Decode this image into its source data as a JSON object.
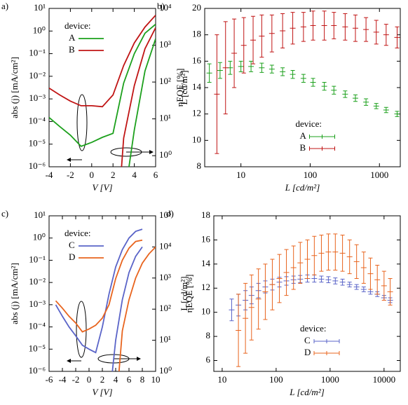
{
  "chart_data": [
    {
      "type": "line",
      "label": "a)",
      "xlabel": "V [V]",
      "ylabel": "abs (j) [mA/cm²]",
      "y2label": "L [cd/m²]",
      "xlim": [
        -4,
        6
      ],
      "xticks": [
        -4,
        -2,
        0,
        2,
        4,
        6
      ],
      "ylim": [
        1e-06,
        10
      ],
      "ylog": true,
      "yticks": [
        {
          "value": 1e-06,
          "label": "10⁻⁶"
        },
        {
          "value": 1e-05,
          "label": "10⁻⁵"
        },
        {
          "value": 0.0001,
          "label": "10⁻⁴"
        },
        {
          "value": 0.001,
          "label": "10⁻³"
        },
        {
          "value": 0.01,
          "label": "10⁻²"
        },
        {
          "value": 0.1,
          "label": "10⁻¹"
        },
        {
          "value": 1,
          "label": "10⁰"
        },
        {
          "value": 10,
          "label": "10¹"
        }
      ],
      "y2lim": [
        0.5,
        10000
      ],
      "y2log": true,
      "y2ticks": [
        {
          "value": 1,
          "label": "10⁰"
        },
        {
          "value": 10,
          "label": "10¹"
        },
        {
          "value": 100,
          "label": "10²"
        },
        {
          "value": 1000,
          "label": "10³"
        },
        {
          "value": 10000,
          "label": "10⁴"
        }
      ],
      "legend_title": "device:",
      "legend": "upper left",
      "series": [
        {
          "name": "A",
          "color": "#1ca01c",
          "x": [
            -4,
            -3,
            -2,
            -1,
            0,
            1,
            2,
            3,
            4,
            5,
            6
          ],
          "values": [
            0.00015,
            6e-05,
            2.5e-05,
            8e-06,
            1.2e-05,
            2e-05,
            3e-05,
            0.005,
            0.1,
            0.8,
            2
          ]
        },
        {
          "color": "#c01414",
          "name": "B",
          "x": [
            -4,
            -3,
            -2,
            -1,
            0,
            1,
            2,
            3,
            4,
            5,
            6
          ],
          "values": [
            0.003,
            0.0015,
            0.0008,
            0.0005,
            0.0005,
            0.00045,
            0.0015,
            0.03,
            0.3,
            1.5,
            5
          ]
        },
        {
          "color": "#1ca01c",
          "axis": "y2",
          "x": [
            3.5,
            4,
            5,
            6
          ],
          "values": [
            0.5,
            5,
            200,
            1500
          ]
        },
        {
          "color": "#c01414",
          "axis": "y2",
          "x": [
            2.8,
            3,
            4,
            5,
            6
          ],
          "values": [
            0.5,
            3,
            80,
            800,
            3000
          ]
        }
      ]
    },
    {
      "type": "errorbar",
      "label": "b)",
      "xlabel": "L [cd/m²]",
      "ylabel": "ηEQE [%]",
      "xlim": [
        3,
        2000
      ],
      "xlog": true,
      "xticks": [
        10,
        100,
        1000
      ],
      "ylim": [
        8,
        20
      ],
      "yticks": [
        8,
        10,
        12,
        14,
        16,
        18,
        20
      ],
      "legend_title": "device:",
      "legend": "lower center",
      "series": [
        {
          "name": "A",
          "color": "#1ca01c",
          "x": [
            3.5,
            5,
            7,
            10,
            14,
            20,
            28,
            40,
            56,
            80,
            110,
            160,
            220,
            320,
            450,
            640,
            900,
            1250,
            1800
          ],
          "values": [
            15.1,
            15.3,
            15.5,
            15.6,
            15.6,
            15.5,
            15.4,
            15.2,
            15.0,
            14.7,
            14.4,
            14.1,
            13.8,
            13.5,
            13.2,
            12.9,
            12.6,
            12.3,
            12.0
          ],
          "errors": [
            0.7,
            0.6,
            0.5,
            0.4,
            0.4,
            0.35,
            0.3,
            0.3,
            0.3,
            0.3,
            0.3,
            0.3,
            0.3,
            0.25,
            0.25,
            0.25,
            0.2,
            0.2,
            0.2
          ]
        },
        {
          "name": "B",
          "color": "#c01414",
          "x": [
            4.5,
            6,
            8,
            11,
            15,
            20,
            28,
            40,
            56,
            80,
            110,
            160,
            220,
            320,
            450,
            640,
            900,
            1250,
            1800
          ],
          "values": [
            13.5,
            15.5,
            16.6,
            17.2,
            17.6,
            17.9,
            18.1,
            18.3,
            18.5,
            18.6,
            18.7,
            18.7,
            18.7,
            18.6,
            18.5,
            18.4,
            18.2,
            18.0,
            17.8
          ],
          "errors": [
            4.5,
            3.5,
            2.6,
            2.1,
            1.8,
            1.6,
            1.4,
            1.3,
            1.2,
            1.1,
            1.1,
            1.1,
            1.0,
            1.0,
            1.0,
            0.9,
            0.9,
            0.8,
            0.8
          ]
        }
      ]
    },
    {
      "type": "line",
      "label": "c)",
      "xlabel": "V [V]",
      "ylabel": "abs (j) [mA/cm²]",
      "y2label": "L [cd/m²]",
      "xlim": [
        -6,
        10
      ],
      "xticks": [
        -6,
        -4,
        -2,
        0,
        2,
        4,
        6,
        8,
        10
      ],
      "ylim": [
        1e-06,
        10
      ],
      "ylog": true,
      "yticks": [
        {
          "value": 1e-06,
          "label": "10⁻⁶"
        },
        {
          "value": 1e-05,
          "label": "10⁻⁵"
        },
        {
          "value": 0.0001,
          "label": "10⁻⁴"
        },
        {
          "value": 0.001,
          "label": "10⁻³"
        },
        {
          "value": 0.01,
          "label": "10⁻²"
        },
        {
          "value": 0.1,
          "label": "10⁻¹"
        },
        {
          "value": 1,
          "label": "10⁰"
        },
        {
          "value": 10,
          "label": "10¹"
        }
      ],
      "y2lim": [
        1,
        100000
      ],
      "y2log": true,
      "y2ticks": [
        {
          "value": 1,
          "label": "10⁰"
        },
        {
          "value": 10,
          "label": "10¹"
        },
        {
          "value": 100,
          "label": "10²"
        },
        {
          "value": 1000,
          "label": "10³"
        },
        {
          "value": 10000,
          "label": "10⁴"
        },
        {
          "value": 100000,
          "label": "10⁵"
        }
      ],
      "legend_title": "device:",
      "legend": "upper left",
      "series": [
        {
          "name": "C",
          "color": "#5a64c8",
          "x": [
            -5,
            -4,
            -3,
            -2,
            -1,
            0,
            1,
            2,
            3,
            4,
            5,
            6,
            7,
            8
          ],
          "values": [
            0.001,
            0.0003,
            0.0001,
            4e-05,
            1.5e-05,
            1e-05,
            7e-06,
            0.0001,
            0.003,
            0.05,
            0.3,
            1,
            2,
            2.5
          ]
        },
        {
          "name": "D",
          "color": "#e8641e",
          "x": [
            -5,
            -4,
            -3,
            -2,
            -1,
            0,
            1,
            2,
            3,
            4,
            5,
            6,
            7,
            8
          ],
          "values": [
            0.0015,
            0.0007,
            0.0003,
            0.00015,
            6e-05,
            8e-05,
            0.00012,
            0.00025,
            0.001,
            0.015,
            0.1,
            0.35,
            0.7,
            0.8
          ]
        },
        {
          "color": "#5a64c8",
          "axis": "y2",
          "x": [
            3.5,
            4,
            5,
            6,
            7,
            8
          ],
          "values": [
            1,
            10,
            200,
            1500,
            5000,
            10000
          ]
        },
        {
          "color": "#e8641e",
          "axis": "y2",
          "x": [
            4.5,
            5,
            6,
            7,
            8,
            9,
            10
          ],
          "values": [
            1,
            20,
            200,
            1000,
            3000,
            6000,
            10000
          ]
        }
      ]
    },
    {
      "type": "errorbar",
      "label": "d)",
      "xlabel": "L [cd/m²]",
      "ylabel": "ηEQE [%]",
      "xlim": [
        7,
        20000
      ],
      "xlog": true,
      "xticks": [
        10,
        100,
        1000,
        10000
      ],
      "ylim": [
        5.1,
        18
      ],
      "yticks": [
        6,
        8,
        10,
        12,
        14,
        16,
        18
      ],
      "legend_title": "device:",
      "legend": "lower center",
      "series": [
        {
          "name": "C",
          "color": "#5a64c8",
          "x": [
            15,
            20,
            27,
            35,
            47,
            63,
            85,
            115,
            155,
            210,
            280,
            380,
            510,
            690,
            930,
            1250,
            1700,
            2300,
            3100,
            4200,
            5600,
            7500,
            10000,
            13000
          ],
          "values": [
            10.2,
            10.6,
            11.0,
            11.4,
            11.8,
            12.1,
            12.3,
            12.5,
            12.6,
            12.7,
            12.75,
            12.8,
            12.8,
            12.75,
            12.7,
            12.6,
            12.5,
            12.3,
            12.1,
            11.9,
            11.7,
            11.5,
            11.2,
            11.0
          ],
          "errors": [
            0.9,
            0.9,
            0.8,
            0.7,
            0.6,
            0.5,
            0.45,
            0.4,
            0.35,
            0.3,
            0.3,
            0.3,
            0.3,
            0.25,
            0.25,
            0.25,
            0.25,
            0.2,
            0.2,
            0.2,
            0.2,
            0.2,
            0.2,
            0.2
          ]
        },
        {
          "name": "D",
          "color": "#e8641e",
          "x": [
            20,
            27,
            35,
            47,
            63,
            85,
            115,
            155,
            210,
            280,
            380,
            510,
            690,
            930,
            1250,
            1700,
            2300,
            3100,
            4200,
            5600,
            7500,
            10000,
            13000
          ],
          "values": [
            8.5,
            9.5,
            10.4,
            11.1,
            11.7,
            12.3,
            12.8,
            13.3,
            13.7,
            14.1,
            14.4,
            14.7,
            14.9,
            15.0,
            15.0,
            14.9,
            14.6,
            14.2,
            13.7,
            13.2,
            12.7,
            12.2,
            11.7
          ],
          "errors": [
            3.0,
            2.9,
            2.7,
            2.5,
            2.3,
            2.1,
            2.0,
            1.9,
            1.8,
            1.7,
            1.6,
            1.6,
            1.5,
            1.5,
            1.5,
            1.5,
            1.4,
            1.4,
            1.3,
            1.3,
            1.2,
            1.2,
            1.1
          ]
        }
      ]
    }
  ]
}
